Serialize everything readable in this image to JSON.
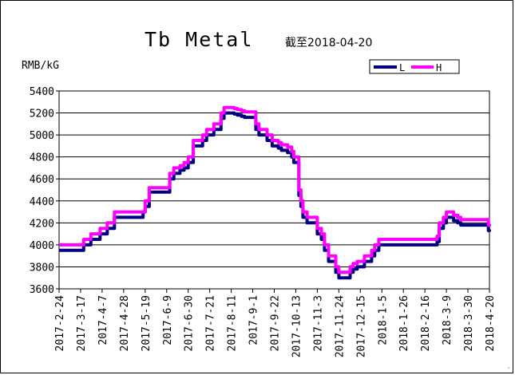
{
  "chart_data": {
    "type": "line",
    "title": "Tb Metal",
    "subtitle": "截至2018-04-20",
    "ylabel": "RMB/kG",
    "xlabel": "",
    "ylim": [
      3600,
      5400
    ],
    "yticks": [
      3600,
      3800,
      4000,
      4200,
      4400,
      4600,
      4800,
      5000,
      5200,
      5400
    ],
    "xticks": [
      "2017-2-24",
      "2017-3-17",
      "2017-4-7",
      "2017-4-28",
      "2017-5-19",
      "2017-6-9",
      "2017-6-30",
      "2017-7-21",
      "2017-8-11",
      "2017-9-1",
      "2017-9-22",
      "2017-10-13",
      "2017-11-3",
      "2017-11-24",
      "2017-12-15",
      "2018-1-5",
      "2018-1-26",
      "2018-2-16",
      "2018-3-9",
      "2018-3-30",
      "2018-4-20"
    ],
    "grid": "horizontal",
    "legend_position": "top-right",
    "colors": {
      "L": "#000080",
      "H": "#ff00ff"
    },
    "x": [
      "2017-2-24",
      "2017-3-6",
      "2017-3-10",
      "2017-3-14",
      "2017-3-20",
      "2017-3-27",
      "2017-3-31",
      "2017-4-5",
      "2017-4-12",
      "2017-4-19",
      "2017-4-26",
      "2017-5-3",
      "2017-5-10",
      "2017-5-15",
      "2017-5-17",
      "2017-5-19",
      "2017-5-23",
      "2017-5-30",
      "2017-6-5",
      "2017-6-9",
      "2017-6-12",
      "2017-6-14",
      "2017-6-16",
      "2017-6-20",
      "2017-6-22",
      "2017-6-26",
      "2017-6-30",
      "2017-7-3",
      "2017-7-5",
      "2017-7-10",
      "2017-7-14",
      "2017-7-18",
      "2017-7-21",
      "2017-7-25",
      "2017-7-28",
      "2017-8-1",
      "2017-8-4",
      "2017-8-8",
      "2017-8-11",
      "2017-8-14",
      "2017-8-17",
      "2017-8-21",
      "2017-8-24",
      "2017-8-28",
      "2017-9-1",
      "2017-9-4",
      "2017-9-7",
      "2017-9-12",
      "2017-9-15",
      "2017-9-20",
      "2017-9-22",
      "2017-9-26",
      "2017-9-29",
      "2017-10-5",
      "2017-10-9",
      "2017-10-11",
      "2017-10-13",
      "2017-10-16",
      "2017-10-18",
      "2017-10-20",
      "2017-10-24",
      "2017-10-27",
      "2017-10-31",
      "2017-11-3",
      "2017-11-7",
      "2017-11-10",
      "2017-11-14",
      "2017-11-17",
      "2017-11-21",
      "2017-11-24",
      "2017-11-28",
      "2017-12-1",
      "2017-12-5",
      "2017-12-8",
      "2017-12-12",
      "2017-12-15",
      "2017-12-19",
      "2017-12-22",
      "2017-12-26",
      "2017-12-29",
      "2018-1-2",
      "2018-1-5",
      "2018-1-9",
      "2018-1-12",
      "2018-1-16",
      "2018-1-19",
      "2018-1-23",
      "2018-1-26",
      "2018-2-2",
      "2018-2-9",
      "2018-2-16",
      "2018-2-23",
      "2018-2-28",
      "2018-3-2",
      "2018-3-6",
      "2018-3-9",
      "2018-3-13",
      "2018-3-16",
      "2018-3-20",
      "2018-3-23",
      "2018-3-27",
      "2018-3-30",
      "2018-4-3",
      "2018-4-10",
      "2018-4-13",
      "2018-4-17",
      "2018-4-19",
      "2018-4-20"
    ],
    "series": [
      {
        "name": "L",
        "values": [
          3950,
          3950,
          3950,
          3950,
          4000,
          4050,
          4050,
          4100,
          4150,
          4250,
          4250,
          4250,
          4250,
          4250,
          4300,
          4350,
          4480,
          4480,
          4480,
          4480,
          4600,
          4600,
          4650,
          4650,
          4680,
          4700,
          4750,
          4750,
          4900,
          4900,
          4950,
          5000,
          5000,
          5050,
          5050,
          5150,
          5200,
          5200,
          5200,
          5190,
          5180,
          5170,
          5160,
          5160,
          5160,
          5050,
          5000,
          5000,
          4950,
          4900,
          4900,
          4880,
          4860,
          4840,
          4800,
          4750,
          4750,
          4450,
          4350,
          4250,
          4200,
          4200,
          4200,
          4100,
          4050,
          3950,
          3850,
          3850,
          3750,
          3700,
          3700,
          3700,
          3750,
          3780,
          3800,
          3800,
          3850,
          3850,
          3900,
          3950,
          4000,
          4000,
          4000,
          4000,
          4000,
          4000,
          4000,
          4000,
          4000,
          4000,
          4000,
          4000,
          4030,
          4150,
          4200,
          4250,
          4250,
          4220,
          4200,
          4180,
          4180,
          4180,
          4180,
          4180,
          4180,
          4180,
          4130,
          4120
        ]
      },
      {
        "name": "H",
        "values": [
          4000,
          4000,
          4000,
          4000,
          4050,
          4100,
          4100,
          4150,
          4200,
          4300,
          4300,
          4300,
          4300,
          4300,
          4300,
          4400,
          4520,
          4520,
          4520,
          4520,
          4650,
          4650,
          4700,
          4700,
          4720,
          4750,
          4800,
          4800,
          4950,
          4950,
          5000,
          5050,
          5050,
          5100,
          5100,
          5200,
          5250,
          5250,
          5250,
          5240,
          5230,
          5220,
          5210,
          5210,
          5210,
          5100,
          5050,
          5050,
          5000,
          4950,
          4950,
          4930,
          4910,
          4890,
          4850,
          4800,
          4800,
          4500,
          4400,
          4300,
          4250,
          4250,
          4250,
          4150,
          4100,
          4000,
          3900,
          3900,
          3800,
          3750,
          3750,
          3750,
          3800,
          3830,
          3850,
          3850,
          3900,
          3900,
          3950,
          4000,
          4050,
          4050,
          4050,
          4050,
          4050,
          4050,
          4050,
          4050,
          4050,
          4050,
          4050,
          4050,
          4080,
          4200,
          4250,
          4300,
          4300,
          4270,
          4250,
          4230,
          4230,
          4230,
          4230,
          4230,
          4230,
          4230,
          4180,
          4170
        ]
      }
    ]
  },
  "legend": [
    {
      "label": "L"
    },
    {
      "label": "H"
    }
  ]
}
